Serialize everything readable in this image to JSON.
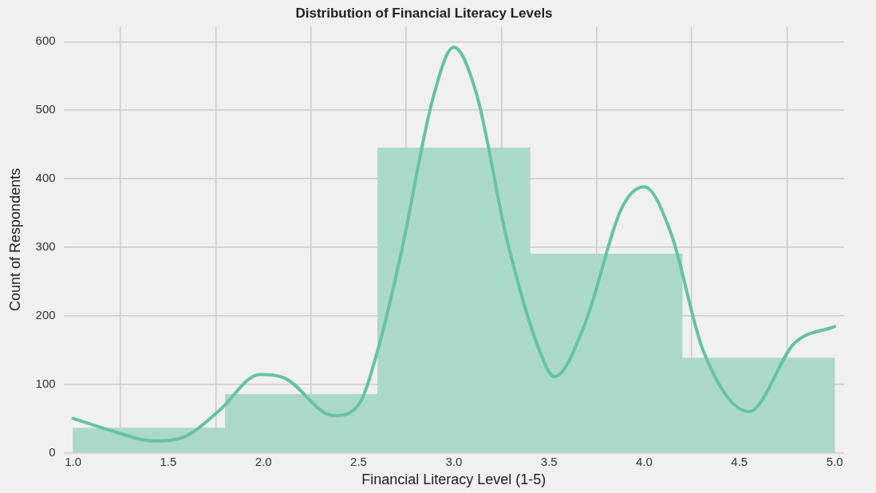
{
  "chart_data": {
    "type": "histogram",
    "title": "Distribution of Financial Literacy Levels",
    "xlabel": "Financial Literacy Level (1-5)",
    "ylabel": "Count of Respondents",
    "bins": [
      1.0,
      1.8,
      2.6,
      3.4,
      4.2,
      5.0
    ],
    "values": [
      36,
      85,
      445,
      290,
      138
    ],
    "color": "#abd9c9",
    "series": [
      {
        "type": "line",
        "color": "#66c2a5",
        "x": [
          1.0,
          1.19,
          1.43,
          1.6,
          1.77,
          1.98,
          2.11,
          2.37,
          2.5,
          2.6,
          2.72,
          2.89,
          3.0,
          3.12,
          3.28,
          3.45,
          3.53,
          3.69,
          3.88,
          4.0,
          4.14,
          4.31,
          4.55,
          4.79,
          5.0
        ],
        "values": [
          50,
          33,
          17,
          25,
          62,
          114,
          109,
          54,
          70,
          149,
          287,
          517,
          592,
          523,
          310,
          149,
          111,
          189,
          356,
          388,
          321,
          149,
          60,
          160,
          184
        ]
      }
    ],
    "xlim": [
      0.95,
      5.05
    ],
    "xticks": [
      {
        "value": 1,
        "label": "1.0"
      },
      {
        "value": 1.5,
        "label": "1.5"
      },
      {
        "value": 2,
        "label": "2.0"
      },
      {
        "value": 2.5,
        "label": "2.5"
      },
      {
        "value": 3,
        "label": "3.0"
      },
      {
        "value": 3.5,
        "label": "3.5"
      },
      {
        "value": 4,
        "label": "4.0"
      },
      {
        "value": 4.5,
        "label": "4.5"
      },
      {
        "value": 5,
        "label": "5.0"
      }
    ],
    "ylim": [
      0,
      622
    ],
    "yticks": [
      0,
      100,
      200,
      300,
      400,
      500,
      600
    ],
    "grid": true,
    "marker": "none",
    "line_style": "solid"
  }
}
